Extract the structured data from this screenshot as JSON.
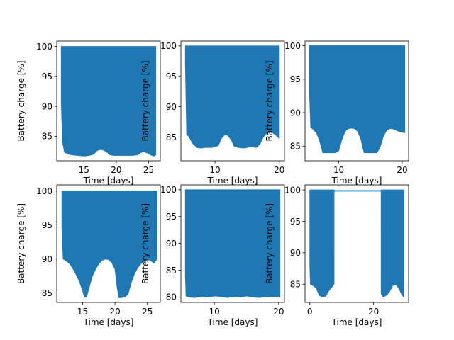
{
  "figure": {
    "background": "#ffffff",
    "series_color": "#1f77b4"
  },
  "chart_data": [
    {
      "type": "area",
      "xlabel": "Time [days]",
      "ylabel": "Battery charge [%]",
      "xlim": [
        10.8,
        26.8
      ],
      "ylim": [
        80.9,
        100.9
      ],
      "xticks": [
        15,
        20,
        25
      ],
      "yticks": [
        85,
        90,
        95,
        100
      ],
      "series": [
        {
          "x": [
            11.5,
            11.7,
            12.0,
            13.0,
            14.0,
            15.0,
            15.8,
            16.5,
            17.0,
            17.5,
            18.0,
            18.5,
            19.0,
            19.6,
            20.5,
            21.5,
            22.5,
            23.3,
            23.8,
            24.3,
            24.8,
            25.3,
            25.8,
            26.1
          ],
          "upper": [
            100,
            100,
            100,
            100,
            100,
            100,
            100,
            100,
            100,
            100,
            100,
            100,
            100,
            100,
            100,
            100,
            100,
            100,
            100,
            100,
            100,
            100,
            100,
            100
          ],
          "lower": [
            90.5,
            84.0,
            82.3,
            81.9,
            81.8,
            81.7,
            81.8,
            82.0,
            82.6,
            82.8,
            82.7,
            82.4,
            81.9,
            81.8,
            81.8,
            81.8,
            81.8,
            81.9,
            82.3,
            82.4,
            82.2,
            81.9,
            81.7,
            81.9
          ]
        }
      ]
    },
    {
      "type": "area",
      "xlabel": "Time [days]",
      "ylabel": "Battery charge [%]",
      "xlim": [
        4.7,
        20.8
      ],
      "ylim": [
        81.1,
        100.8
      ],
      "xticks": [
        10,
        20
      ],
      "yticks": [
        85,
        90,
        95,
        100
      ],
      "series": [
        {
          "x": [
            5.4,
            5.6,
            6.0,
            6.5,
            7.2,
            7.8,
            8.5,
            9.5,
            10.5,
            11.0,
            11.5,
            12.0,
            12.5,
            13.0,
            13.6,
            14.5,
            15.5,
            16.5,
            17.0,
            17.5,
            18.0,
            18.5,
            19.0,
            19.5,
            20.0
          ],
          "upper": [
            100,
            100,
            100,
            100,
            100,
            100,
            100,
            100,
            100,
            100,
            100,
            100,
            100,
            100,
            100,
            100,
            100,
            100,
            100,
            100,
            100,
            100,
            100,
            100,
            100
          ],
          "lower": [
            97.0,
            85.5,
            85.0,
            84.0,
            83.3,
            83.2,
            83.3,
            83.3,
            83.6,
            84.8,
            85.4,
            85.3,
            84.6,
            83.5,
            83.3,
            83.2,
            83.4,
            83.3,
            83.9,
            85.0,
            85.6,
            85.8,
            85.7,
            85.3,
            84.8
          ]
        }
      ]
    },
    {
      "type": "area",
      "xlabel": "Time [days]",
      "ylabel": "Battery charge [%]",
      "xlim": [
        4.7,
        21.0
      ],
      "ylim": [
        82.8,
        100.7
      ],
      "xticks": [
        10,
        20
      ],
      "yticks": [
        85,
        90,
        95,
        100
      ],
      "series": [
        {
          "x": [
            5.4,
            5.6,
            6.0,
            6.5,
            7.0,
            7.5,
            8.5,
            9.5,
            10.0,
            10.5,
            11.0,
            11.5,
            12.0,
            12.5,
            13.0,
            13.5,
            14.0,
            14.5,
            15.0,
            16.0,
            16.5,
            17.0,
            17.5,
            18.0,
            18.5,
            19.0,
            19.5,
            20.0,
            20.4
          ],
          "upper": [
            100,
            100,
            100,
            100,
            100,
            100,
            100,
            100,
            100,
            100,
            100,
            100,
            100,
            100,
            100,
            100,
            100,
            100,
            100,
            100,
            100,
            100,
            100,
            100,
            100,
            100,
            100,
            100,
            100
          ],
          "lower": [
            93.0,
            87.8,
            87.5,
            87.0,
            85.8,
            84.0,
            84.0,
            84.0,
            84.3,
            86.0,
            87.2,
            87.6,
            87.7,
            87.6,
            87.2,
            86.0,
            84.0,
            84.0,
            84.0,
            84.0,
            84.8,
            86.4,
            87.3,
            87.6,
            87.6,
            87.4,
            87.2,
            87.1,
            87.0
          ]
        }
      ]
    },
    {
      "type": "area",
      "xlabel": "Time [days]",
      "ylabel": "Battery charge [%]",
      "xlim": [
        11.0,
        27.0
      ],
      "ylim": [
        83.6,
        100.9
      ],
      "xticks": [
        15,
        20,
        25
      ],
      "yticks": [
        85,
        90,
        95,
        100
      ],
      "series": [
        {
          "x": [
            11.8,
            12.0,
            12.5,
            13.0,
            13.5,
            14.0,
            14.5,
            15.0,
            15.3,
            15.6,
            16.0,
            16.5,
            17.0,
            17.5,
            18.0,
            18.5,
            19.0,
            19.5,
            20.0,
            20.3,
            20.6,
            21.0,
            21.5,
            22.0,
            22.5,
            23.0,
            23.5,
            24.0,
            24.5,
            25.0,
            25.5,
            26.0,
            26.5
          ],
          "upper": [
            100,
            100,
            100,
            100,
            100,
            100,
            100,
            100,
            100,
            100,
            100,
            100,
            100,
            100,
            100,
            100,
            100,
            100,
            100,
            100,
            100,
            100,
            100,
            100,
            100,
            100,
            100,
            100,
            100,
            100,
            100,
            100,
            100
          ],
          "lower": [
            94.5,
            90.0,
            89.7,
            89.3,
            88.6,
            87.7,
            86.7,
            85.3,
            84.4,
            84.4,
            85.8,
            87.5,
            88.5,
            89.3,
            89.8,
            90.0,
            89.9,
            89.5,
            88.5,
            86.0,
            84.3,
            84.3,
            84.4,
            84.8,
            86.5,
            87.8,
            88.7,
            89.3,
            89.7,
            89.9,
            89.8,
            89.4,
            90.0
          ]
        }
      ]
    },
    {
      "type": "area",
      "xlabel": "Time [days]",
      "ylabel": "Battery charge [%]",
      "xlim": [
        4.8,
        20.9
      ],
      "ylim": [
        79.0,
        100.9
      ],
      "xticks": [
        10,
        20
      ],
      "yticks": [
        80,
        85,
        90,
        95,
        100
      ],
      "series": [
        {
          "x": [
            5.5,
            5.6,
            6.0,
            7.0,
            8.0,
            9.0,
            10.0,
            11.0,
            12.0,
            13.0,
            14.0,
            15.0,
            16.0,
            17.0,
            18.0,
            19.0,
            20.0,
            20.2
          ],
          "upper": [
            100,
            100,
            100,
            100,
            100,
            100,
            100,
            100,
            100,
            100,
            100,
            100,
            100,
            100,
            100,
            100,
            100,
            100
          ],
          "lower": [
            84.0,
            80.2,
            80.0,
            79.9,
            80.1,
            80.0,
            80.2,
            80.1,
            79.9,
            80.1,
            80.0,
            80.2,
            80.0,
            79.9,
            80.1,
            80.0,
            80.1,
            80.0
          ]
        }
      ]
    },
    {
      "type": "area",
      "xlabel": "Time [days]",
      "ylabel": "Battery charge [%]",
      "xlim": [
        -1.5,
        31.0
      ],
      "ylim": [
        82.1,
        100.8
      ],
      "xticks": [
        0,
        20
      ],
      "yticks": [
        85,
        90,
        95,
        100
      ],
      "series": [
        {
          "x": [
            0.0,
            0.2,
            1.0,
            2.0,
            3.0,
            4.0,
            5.0,
            6.0,
            7.0,
            7.6,
            7.61,
            22.39,
            22.4,
            23.0,
            24.0,
            25.0,
            26.0,
            27.0,
            28.0,
            29.0,
            29.5
          ],
          "upper": [
            100,
            100,
            100,
            100,
            100,
            100,
            100,
            100,
            100,
            100,
            99.9,
            99.9,
            100,
            100,
            100,
            100,
            100,
            100,
            100,
            100,
            100
          ],
          "lower": [
            88.0,
            85.0,
            84.8,
            84.4,
            83.2,
            83.0,
            83.1,
            84.0,
            84.6,
            85.0,
            99.8,
            99.8,
            83.5,
            83.0,
            83.2,
            83.8,
            84.8,
            85.0,
            84.3,
            83.2,
            83.0
          ]
        }
      ]
    }
  ]
}
